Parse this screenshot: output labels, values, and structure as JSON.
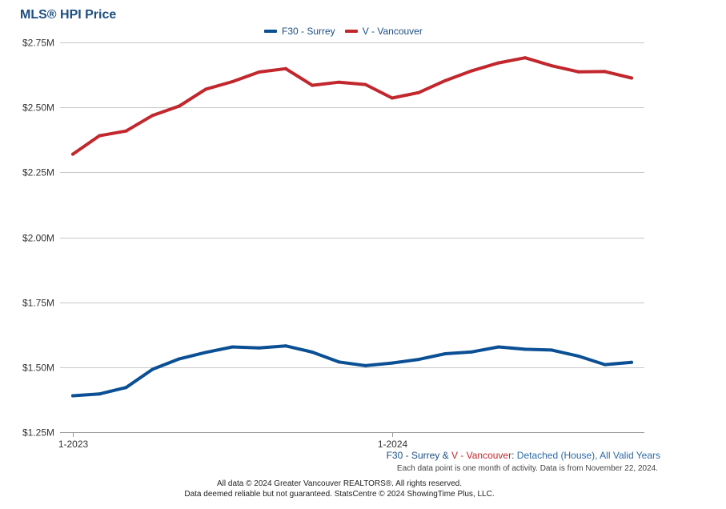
{
  "chart_data": {
    "type": "line",
    "title": "MLS® HPI Price",
    "x": [
      "2023-01",
      "2023-02",
      "2023-03",
      "2023-04",
      "2023-05",
      "2023-06",
      "2023-07",
      "2023-08",
      "2023-09",
      "2023-10",
      "2023-11",
      "2023-12",
      "2024-01",
      "2024-02",
      "2024-03",
      "2024-04",
      "2024-05",
      "2024-06",
      "2024-07",
      "2024-08",
      "2024-09",
      "2024-10"
    ],
    "xtick_labels": [
      {
        "label": "1-2023",
        "index": 0
      },
      {
        "label": "1-2024",
        "index": 12
      }
    ],
    "yticks": [
      1250000,
      1500000,
      1750000,
      2000000,
      2250000,
      2500000,
      2750000
    ],
    "ytick_labels": [
      "$1.25M",
      "$1.50M",
      "$1.75M",
      "$2.00M",
      "$2.25M",
      "$2.50M",
      "$2.75M"
    ],
    "ylim": [
      1250000,
      2750000
    ],
    "xlabel": "",
    "ylabel": "",
    "grid": true,
    "series": [
      {
        "name": "F30 - Surrey",
        "color": "#0b4f94",
        "values": [
          1390000,
          1397000,
          1422000,
          1492000,
          1532000,
          1557000,
          1578000,
          1574000,
          1582000,
          1558000,
          1520000,
          1506000,
          1516000,
          1530000,
          1552000,
          1559000,
          1578000,
          1569000,
          1566000,
          1543000,
          1510000,
          1519000
        ]
      },
      {
        "name": "V - Vancouver",
        "color": "#c1272d",
        "values": [
          2320000,
          2391000,
          2409000,
          2469000,
          2505000,
          2570000,
          2599000,
          2636000,
          2649000,
          2585000,
          2597000,
          2588000,
          2536000,
          2557000,
          2603000,
          2641000,
          2671000,
          2691000,
          2660000,
          2637000,
          2638000,
          2613000
        ]
      }
    ]
  },
  "description": {
    "series1": "F30 - Surrey",
    "amp": " & ",
    "series2": "V - Vancouver",
    "colon": ": ",
    "selection": "Detached (House), All Valid Years"
  },
  "note": "Each data point is one month of activity. Data is from November 22, 2024.",
  "footer": {
    "line1": "All data © 2024 Greater Vancouver REALTORS®. All rights reserved.",
    "line2": "Data deemed reliable but not guaranteed. StatsCentre © 2024 ShowingTime Plus, LLC."
  }
}
